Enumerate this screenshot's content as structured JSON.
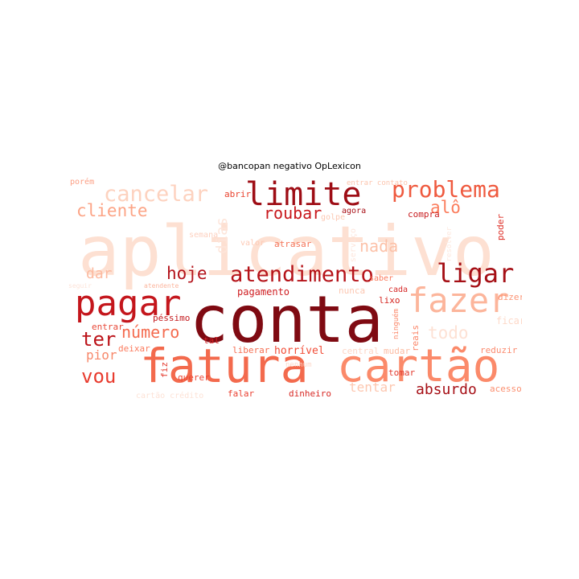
{
  "title": "@bancopan negativo OpLexicon",
  "words": [
    {
      "text": "aplicativo",
      "color": "#fde0d2"
    },
    {
      "text": "conta",
      "color": "#7f0a12"
    },
    {
      "text": "fatura",
      "color": "#f36a4d"
    },
    {
      "text": "cartão",
      "color": "#fb8a6a"
    },
    {
      "text": "pagar",
      "color": "#c4161c"
    },
    {
      "text": "limite",
      "color": "#9e0d15"
    },
    {
      "text": "fazer",
      "color": "#fcb59b"
    },
    {
      "text": "atendimento",
      "color": "#b51319"
    },
    {
      "text": "ligar",
      "color": "#a50f15"
    },
    {
      "text": "problema",
      "color": "#ef5a3f"
    },
    {
      "text": "cancelar",
      "color": "#fdd2bf"
    },
    {
      "text": "cliente",
      "color": "#fca486"
    },
    {
      "text": "alô",
      "color": "#fb7d5d"
    },
    {
      "text": "roubar",
      "color": "#c8171c"
    },
    {
      "text": "hoje",
      "color": "#b3121a"
    },
    {
      "text": "ter",
      "color": "#bc141a"
    },
    {
      "text": "vou",
      "color": "#e83b2e"
    },
    {
      "text": "número",
      "color": "#f46b4f"
    },
    {
      "text": "todo",
      "color": "#fde1d4"
    },
    {
      "text": "absurdo",
      "color": "#a60f16"
    },
    {
      "text": "nada",
      "color": "#fcc1a8"
    },
    {
      "text": "dias",
      "color": "#fde5da"
    },
    {
      "text": "dar",
      "color": "#fcbaa0"
    },
    {
      "text": "pior",
      "color": "#f7886b"
    },
    {
      "text": "tentar",
      "color": "#fdc7b0"
    },
    {
      "text": "pagamento",
      "color": "#cf1d21"
    },
    {
      "text": "horrível",
      "color": "#f14d37"
    },
    {
      "text": "entrar",
      "color": "#e84a3a"
    },
    {
      "text": "péssimo",
      "color": "#c41a1e"
    },
    {
      "text": "tal",
      "color": "#d42428"
    },
    {
      "text": "liberar",
      "color": "#f56e52"
    },
    {
      "text": "falar",
      "color": "#ea3f30"
    },
    {
      "text": "dinheiro",
      "color": "#d82a26"
    },
    {
      "text": "querer",
      "color": "#ec4634"
    },
    {
      "text": "fiz",
      "color": "#e43a2e"
    },
    {
      "text": "abrir",
      "color": "#e9432f"
    },
    {
      "text": "compra",
      "color": "#c81d20"
    },
    {
      "text": "agora",
      "color": "#a80f16"
    },
    {
      "text": "golpe",
      "color": "#fcc8b3"
    },
    {
      "text": "atrasar",
      "color": "#f47256"
    },
    {
      "text": "valor",
      "color": "#fdcab6"
    },
    {
      "text": "semana",
      "color": "#fdd0bf"
    },
    {
      "text": "nunca",
      "color": "#fcc7b2"
    },
    {
      "text": "cada",
      "color": "#d62a29"
    },
    {
      "text": "saber",
      "color": "#fb7a5c"
    },
    {
      "text": "reais",
      "color": "#fb8466"
    },
    {
      "text": "lixo",
      "color": "#d4241f"
    },
    {
      "text": "dizer",
      "color": "#fc9576"
    },
    {
      "text": "poder",
      "color": "#de2f27"
    },
    {
      "text": "ficar",
      "color": "#fdd9c9"
    },
    {
      "text": "reduzir",
      "color": "#fb8b6f"
    },
    {
      "text": "mudar",
      "color": "#fcbca3"
    },
    {
      "text": "central",
      "color": "#fdd6c6"
    },
    {
      "text": "deixar",
      "color": "#fb7c5f"
    },
    {
      "text": "tomar",
      "color": "#e23a2e"
    },
    {
      "text": "acesso",
      "color": "#fb8f70"
    },
    {
      "text": "nenhum",
      "color": "#fdd9cb"
    },
    {
      "text": "ninguém",
      "color": "#fb8a6c"
    },
    {
      "text": "porém",
      "color": "#fc9e83"
    },
    {
      "text": "atendente",
      "color": "#fcb59d"
    },
    {
      "text": "cartão crédito",
      "color": "#fde2d6"
    },
    {
      "text": "entrar contato",
      "color": "#fcc4ad"
    },
    {
      "text": "seguir",
      "color": "#fde3d8"
    },
    {
      "text": "serviço",
      "color": "#fde5db"
    },
    {
      "text": "resolver",
      "color": "#fde8de"
    }
  ]
}
